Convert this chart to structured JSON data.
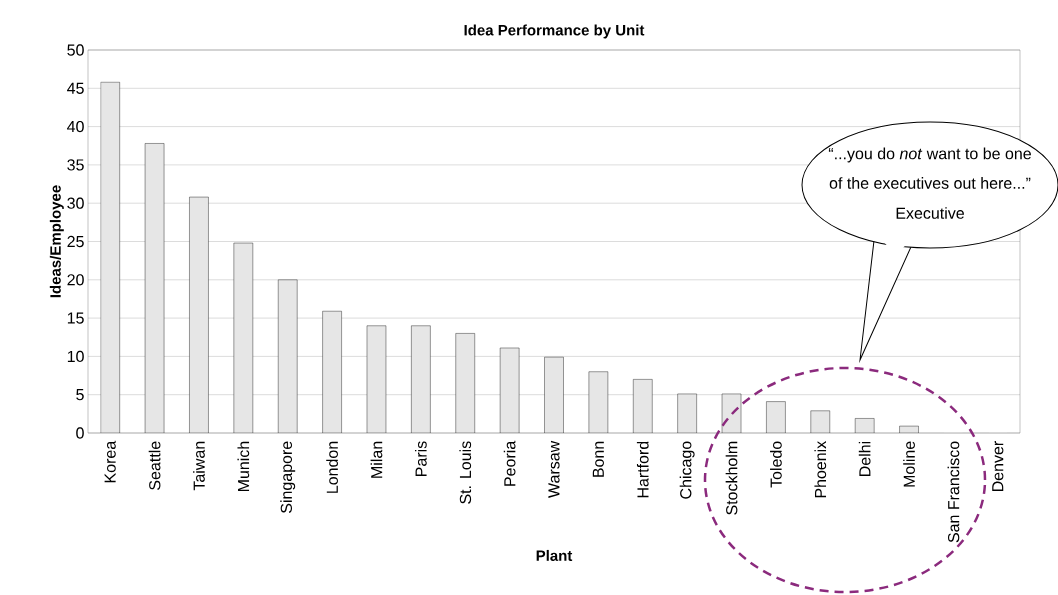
{
  "chart_data": {
    "type": "bar",
    "title": "Idea Performance by Unit",
    "xlabel": "Plant",
    "ylabel": "Ideas/Employee",
    "categories": [
      "Korea",
      "Seattle",
      "Taiwan",
      "Munich",
      "Singapore",
      "London",
      "Milan",
      "Paris",
      "St. Louis",
      "Peoria",
      "Warsaw",
      "Bonn",
      "Hartford",
      "Chicago",
      "Stockholm",
      "Toledo",
      "Phoenix",
      "Delhi",
      "Moline",
      "San Francisco",
      "Denver"
    ],
    "values": [
      45.8,
      37.8,
      30.8,
      24.8,
      20,
      15.9,
      14,
      14,
      13,
      11.1,
      9.9,
      8,
      7,
      5.1,
      5.1,
      4.1,
      2.9,
      1.9,
      0.9,
      0,
      0
    ],
    "color": "#e6e6e6",
    "ylim": [
      0,
      50
    ],
    "yticks": [
      0,
      5,
      10,
      15,
      20,
      25,
      30,
      35,
      40,
      45,
      50
    ],
    "grid": "y",
    "annotations": [
      "“...you do *not* want to be one",
      "of the executives out here...”",
      "Executive"
    ]
  }
}
